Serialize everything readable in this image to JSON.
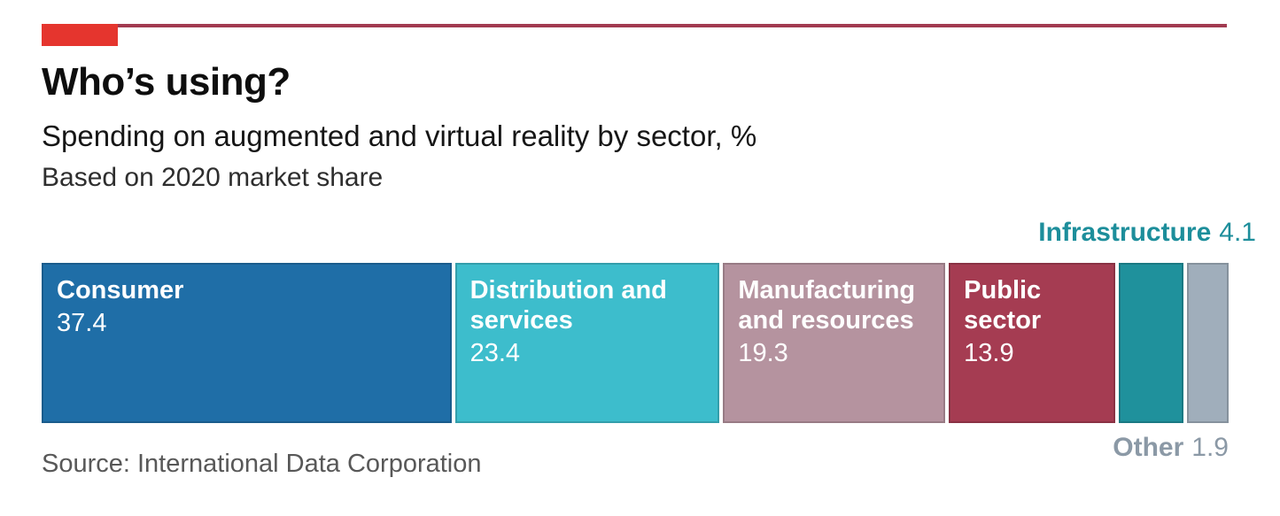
{
  "header": {
    "title": "Who’s using?",
    "subtitle": "Spending on augmented and virtual reality by sector, %",
    "note": "Based on 2020 market share"
  },
  "brand": {
    "accent_red": "#e5352e",
    "rule_color": "#a23a50"
  },
  "chart_data": {
    "type": "bar",
    "variant": "stacked-horizontal-single-bar",
    "unit": "%",
    "title": "Who’s using?",
    "subtitle": "Spending on augmented and virtual reality by sector, %",
    "note": "Based on 2020 market share",
    "total": 100,
    "grid": false,
    "legend_position": "none",
    "label_text_color": "#ffffff",
    "segments": [
      {
        "label": "Consumer",
        "value": 37.4,
        "color": "#1f6ea7",
        "label_position": "inside"
      },
      {
        "label": "Distribution and services",
        "value": 23.4,
        "color": "#3dbdcc",
        "label_position": "inside"
      },
      {
        "label": "Manufacturing and resources",
        "value": 19.3,
        "color": "#b5939f",
        "label_position": "inside"
      },
      {
        "label": "Public sector",
        "value": 13.9,
        "color": "#a53c52",
        "label_position": "inside"
      },
      {
        "label": "Infrastructure",
        "value": 4.1,
        "color": "#1f919c",
        "label_position": "above"
      },
      {
        "label": "Other",
        "value": 1.9,
        "color": "#a0aebb",
        "label_position": "below"
      }
    ]
  },
  "callouts": {
    "infrastructure": {
      "label": "Infrastructure",
      "value": "4.1",
      "color": "#1d8e9b"
    },
    "other": {
      "label": "Other",
      "value": "1.9",
      "color": "#8b99a6"
    }
  },
  "source": {
    "text": "Source: International Data Corporation"
  }
}
